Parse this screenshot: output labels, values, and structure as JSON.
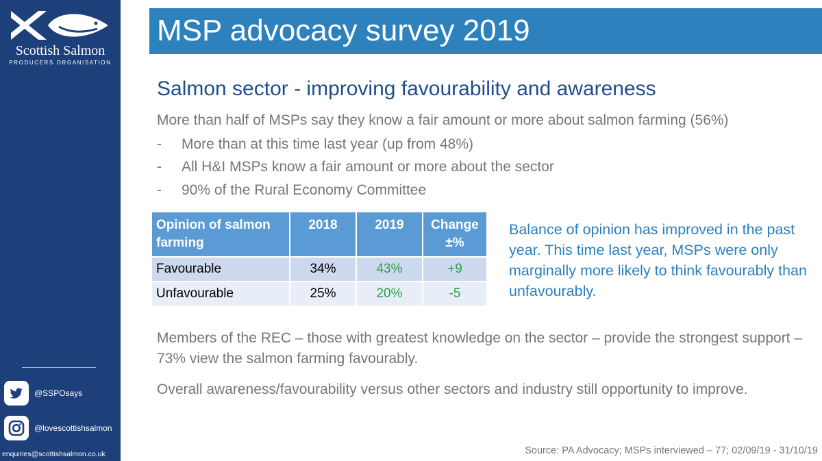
{
  "sidebar": {
    "logo_name": "Scottish Salmon",
    "logo_subtitle": "PRODUCERS ORGANISATION",
    "twitter_handle": "@SSPOsays",
    "instagram_handle": "@lovescottishsalmon",
    "email": "enquiries@scottishsalmon.co.uk",
    "icons": [
      "fish-logo",
      "twitter-icon",
      "instagram-icon"
    ],
    "background_color": "#1d3f7a"
  },
  "slide": {
    "title": "MSP advocacy survey 2019",
    "title_bar_color": "#2d81bc",
    "heading": "Salmon sector - improving favourability and awareness",
    "lead": "More than half of MSPs say they know a fair amount or more about salmon farming (56%)",
    "bullets": [
      "More than at this time last year (up from 48%)",
      "All H&I MSPs know a fair amount or more about the sector",
      "90% of the Rural Economy Committee"
    ],
    "bullet_marker": "-",
    "table": {
      "headers": [
        "Opinion of salmon farming",
        "2018",
        "2019",
        "Change ±%"
      ],
      "rows": [
        [
          "Favourable",
          "34%",
          "43%",
          "+9"
        ],
        [
          "Unfavourable",
          "25%",
          "20%",
          "-5"
        ]
      ],
      "header_color": "#5b9bd5",
      "highlight_color": "#2e9e44"
    },
    "note": "Balance of opinion has improved in the past year. This time last year, MSPs were only marginally more likely to think favourably than unfavourably.",
    "paragraph_1": "Members of the REC – those with greatest knowledge on the sector – provide the strongest support – 73% view the salmon farming favourably.",
    "paragraph_2": "Overall awareness/favourability versus other sectors and industry still opportunity to improve.",
    "source": "Source: PA Advocacy; MSPs interviewed – 77; 02/09/19 - 31/10/19"
  }
}
